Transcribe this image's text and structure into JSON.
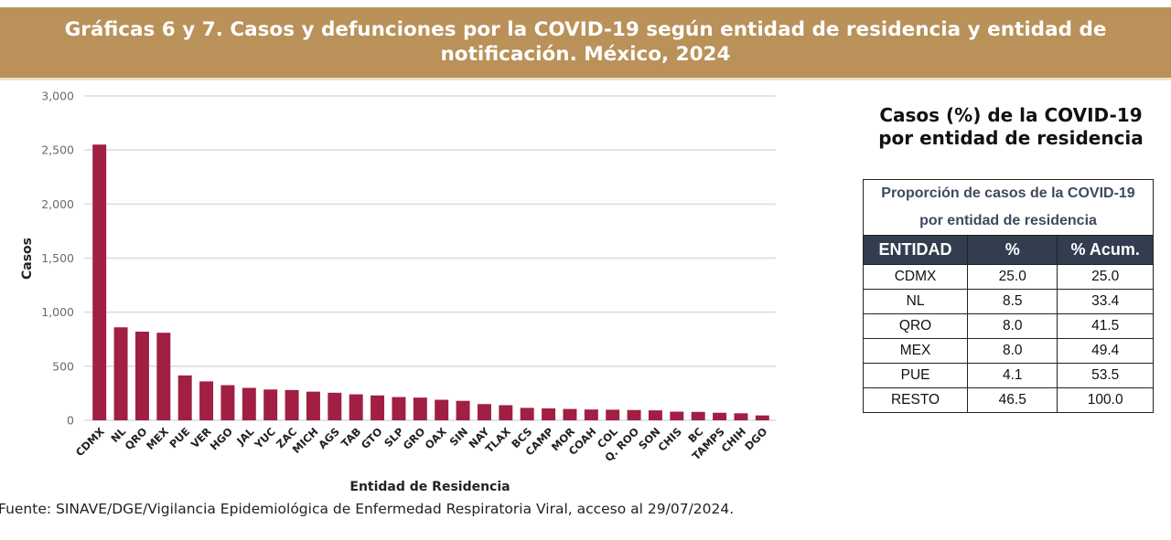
{
  "header": {
    "title_line1": "Gráficas 6 y 7. Casos y defunciones por la COVID-19  según entidad de residencia y entidad de",
    "title_line2": "notificación. México, 2024"
  },
  "colors": {
    "banner": "#b99159",
    "bar": "#a01f42",
    "table_header": "#323e4f"
  },
  "chart_data": {
    "type": "bar",
    "title": "",
    "xlabel": "Entidad de Residencia",
    "ylabel": "Casos",
    "ylim": [
      0,
      3000
    ],
    "yticks": [
      0,
      500,
      1000,
      1500,
      2000,
      2500,
      3000
    ],
    "ytick_labels": [
      "0",
      "500",
      "1,000",
      "1,500",
      "2,000",
      "2,500",
      "3,000"
    ],
    "grid": true,
    "categories": [
      "CDMX",
      "NL",
      "QRO",
      "MEX",
      "PUE",
      "VER",
      "HGO",
      "JAL",
      "YUC",
      "ZAC",
      "MICH",
      "AGS",
      "TAB",
      "GTO",
      "SLP",
      "GRO",
      "OAX",
      "SIN",
      "NAY",
      "TLAX",
      "BCS",
      "CAMP",
      "MOR",
      "COAH",
      "COL",
      "Q. ROO",
      "SON",
      "CHIS",
      "BC",
      "TAMPS",
      "CHIH",
      "DGO"
    ],
    "values": [
      2550,
      860,
      820,
      810,
      415,
      360,
      325,
      300,
      285,
      280,
      265,
      255,
      240,
      230,
      215,
      210,
      190,
      180,
      150,
      140,
      115,
      110,
      105,
      100,
      98,
      95,
      92,
      80,
      78,
      70,
      65,
      45
    ]
  },
  "side_panel": {
    "title_line1": "Casos (%) de la COVID-19",
    "title_line2": "por entidad de residencia",
    "table": {
      "caption_line1": "Proporción de casos de la COVID-19",
      "caption_line2": "por entidad de residencia",
      "headers": [
        "ENTIDAD",
        "%",
        "% Acum."
      ],
      "rows": [
        [
          "CDMX",
          "25.0",
          "25.0"
        ],
        [
          "NL",
          "8.5",
          "33.4"
        ],
        [
          "QRO",
          "8.0",
          "41.5"
        ],
        [
          "MEX",
          "8.0",
          "49.4"
        ],
        [
          "PUE",
          "4.1",
          "53.5"
        ],
        [
          "RESTO",
          "46.5",
          "100.0"
        ]
      ]
    }
  },
  "footer": {
    "source": "Fuente: SINAVE/DGE/Vigilancia Epidemiológica de Enfermedad Respiratoria Viral, acceso al 29/07/2024."
  }
}
